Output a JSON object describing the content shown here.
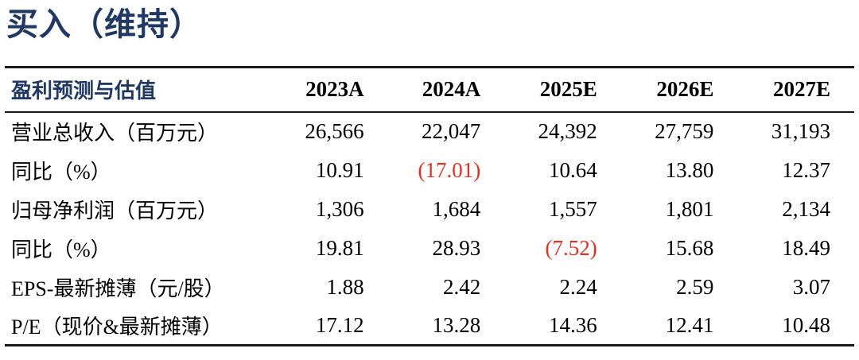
{
  "rating": {
    "title": "买入（维持）"
  },
  "table": {
    "header": {
      "label": "盈利预测与估值",
      "columns": [
        "2023A",
        "2024A",
        "2025E",
        "2026E",
        "2027E"
      ]
    },
    "rows": [
      {
        "label": "营业总收入（百万元）",
        "values": [
          "26,566",
          "22,047",
          "24,392",
          "27,759",
          "31,193"
        ]
      },
      {
        "label": "同比（%）",
        "values": [
          "10.91",
          "(17.01)",
          "10.64",
          "13.80",
          "12.37"
        ]
      },
      {
        "label": "归母净利润（百万元）",
        "values": [
          "1,306",
          "1,684",
          "1,557",
          "1,801",
          "2,134"
        ]
      },
      {
        "label": "同比（%）",
        "values": [
          "19.81",
          "28.93",
          "(7.52)",
          "15.68",
          "18.49"
        ]
      },
      {
        "label": "EPS-最新摊薄（元/股）",
        "values": [
          "1.88",
          "2.42",
          "2.24",
          "2.59",
          "3.07"
        ]
      },
      {
        "label": "P/E（现价&最新摊薄）",
        "values": [
          "17.12",
          "13.28",
          "14.36",
          "12.41",
          "10.48"
        ]
      }
    ]
  },
  "colors": {
    "navy": "#1F3864",
    "negative_red": "#EE2C1E",
    "text": "#000000",
    "rule": "#1a1a1a"
  }
}
